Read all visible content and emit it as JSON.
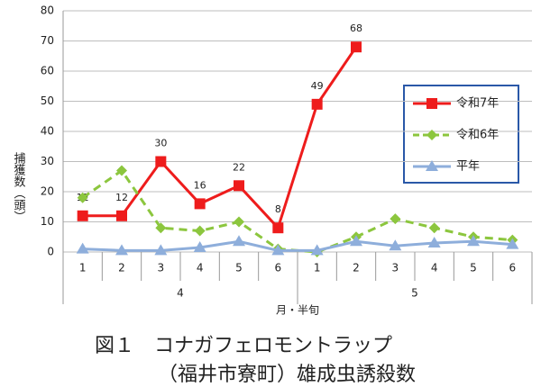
{
  "chart_data": {
    "type": "line",
    "caption": [
      "図１　コナガフェロモントラップ",
      "（福井市寮町）雄成虫誘殺数"
    ],
    "y_label": "捕獲数（頭）",
    "x_label": "月・半旬",
    "categories": [
      "1",
      "2",
      "3",
      "4",
      "5",
      "6",
      "1",
      "2",
      "3",
      "4",
      "5",
      "6"
    ],
    "x_groups": [
      "4",
      "5"
    ],
    "ylim": [
      0,
      80
    ],
    "yticks": [
      0,
      10,
      20,
      30,
      40,
      50,
      60,
      70,
      80
    ],
    "grid": true,
    "legend": "right",
    "series": [
      {
        "name": "令和7年",
        "color": "#ee1c1c",
        "marker": "square",
        "dashed": false,
        "values": [
          12,
          12,
          30,
          16,
          22,
          8,
          49,
          68,
          null,
          null,
          null,
          null
        ],
        "labeled": true
      },
      {
        "name": "令和6年",
        "color": "#8cc63e",
        "marker": "diamond",
        "dashed": true,
        "values": [
          18,
          27,
          8,
          7,
          10,
          1,
          0,
          5,
          11,
          8,
          5,
          4
        ],
        "labeled": false
      },
      {
        "name": "平年",
        "color": "#8eaedb",
        "marker": "triangle",
        "dashed": false,
        "values": [
          1,
          0.5,
          0.5,
          1.5,
          3.5,
          0.5,
          0.5,
          3.5,
          2,
          3,
          3.5,
          2.5
        ],
        "labeled": false
      }
    ]
  }
}
